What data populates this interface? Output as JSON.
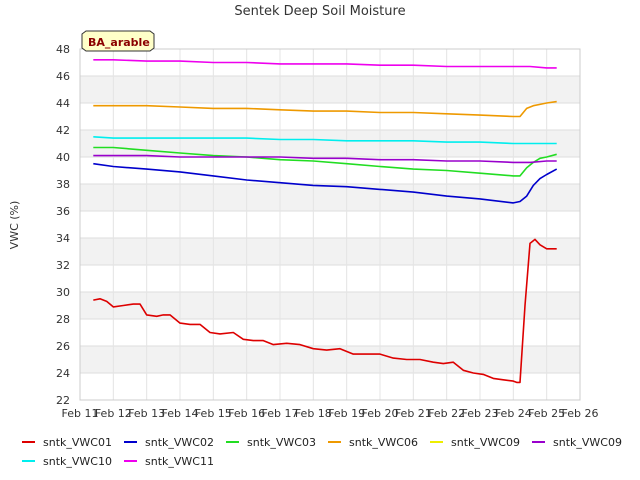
{
  "chart_data": {
    "type": "line",
    "title": "Sentek Deep Soil Moisture",
    "badge": "BA_arable",
    "xlabel": "",
    "ylabel": "VWC (%)",
    "x_ticks": [
      "Feb 11",
      "Feb 12",
      "Feb 13",
      "Feb 14",
      "Feb 15",
      "Feb 16",
      "Feb 17",
      "Feb 18",
      "Feb 19",
      "Feb 20",
      "Feb 21",
      "Feb 22",
      "Feb 23",
      "Feb 24",
      "Feb 25",
      "Feb 26"
    ],
    "xlim": [
      11,
      26
    ],
    "ylim": [
      22,
      48
    ],
    "y_ticks": [
      22,
      24,
      26,
      28,
      30,
      32,
      34,
      36,
      38,
      40,
      42,
      44,
      46,
      48
    ],
    "grid": true,
    "legend_position": "bottom",
    "series": [
      {
        "name": "sntk_VWC01",
        "color": "#dd0000",
        "x": [
          11.4,
          11.6,
          11.8,
          12.0,
          12.3,
          12.6,
          12.8,
          13.0,
          13.3,
          13.5,
          13.7,
          14.0,
          14.3,
          14.6,
          14.9,
          15.2,
          15.6,
          15.9,
          16.2,
          16.5,
          16.8,
          17.2,
          17.6,
          18.0,
          18.4,
          18.8,
          19.2,
          19.6,
          20.0,
          20.4,
          20.8,
          21.2,
          21.6,
          21.9,
          22.2,
          22.5,
          22.8,
          23.1,
          23.4,
          23.7,
          24.0,
          24.1,
          24.2,
          24.35,
          24.5,
          24.65,
          24.8,
          25.0,
          25.3
        ],
        "y": [
          29.4,
          29.5,
          29.3,
          28.9,
          29.0,
          29.1,
          29.1,
          28.3,
          28.2,
          28.3,
          28.3,
          27.7,
          27.6,
          27.6,
          27.0,
          26.9,
          27.0,
          26.5,
          26.4,
          26.4,
          26.1,
          26.2,
          26.1,
          25.8,
          25.7,
          25.8,
          25.4,
          25.4,
          25.4,
          25.1,
          25.0,
          25.0,
          24.8,
          24.7,
          24.8,
          24.2,
          24.0,
          23.9,
          23.6,
          23.5,
          23.4,
          23.3,
          23.3,
          29.0,
          33.6,
          33.9,
          33.5,
          33.2,
          33.2
        ]
      },
      {
        "name": "sntk_VWC02",
        "color": "#0000cc",
        "x": [
          11.4,
          12.0,
          13.0,
          14.0,
          15.0,
          16.0,
          17.0,
          18.0,
          19.0,
          20.0,
          21.0,
          22.0,
          23.0,
          24.0,
          24.2,
          24.4,
          24.6,
          24.8,
          25.0,
          25.3
        ],
        "y": [
          39.5,
          39.3,
          39.1,
          38.9,
          38.6,
          38.3,
          38.1,
          37.9,
          37.8,
          37.6,
          37.4,
          37.1,
          36.9,
          36.6,
          36.7,
          37.1,
          37.9,
          38.4,
          38.7,
          39.1
        ]
      },
      {
        "name": "sntk_VWC03",
        "color": "#22dd22",
        "x": [
          11.4,
          12.0,
          13.0,
          14.0,
          15.0,
          16.0,
          17.0,
          18.0,
          19.0,
          20.0,
          21.0,
          22.0,
          23.0,
          24.0,
          24.2,
          24.4,
          24.6,
          24.8,
          25.0,
          25.3
        ],
        "y": [
          40.7,
          40.7,
          40.5,
          40.3,
          40.1,
          40.0,
          39.8,
          39.7,
          39.5,
          39.3,
          39.1,
          39.0,
          38.8,
          38.6,
          38.6,
          39.2,
          39.6,
          39.9,
          40.0,
          40.2
        ]
      },
      {
        "name": "sntk_VWC06",
        "color": "#ee9900",
        "x": [
          11.4,
          12.0,
          13.0,
          14.0,
          15.0,
          16.0,
          17.0,
          18.0,
          19.0,
          20.0,
          21.0,
          22.0,
          23.0,
          24.0,
          24.2,
          24.4,
          24.6,
          24.8,
          25.0,
          25.3
        ],
        "y": [
          43.8,
          43.8,
          43.8,
          43.7,
          43.6,
          43.6,
          43.5,
          43.4,
          43.4,
          43.3,
          43.3,
          43.2,
          43.1,
          43.0,
          43.0,
          43.6,
          43.8,
          43.9,
          44.0,
          44.1
        ]
      },
      {
        "name": "sntk_VWC09",
        "color": "#eeee00",
        "x": [],
        "y": []
      },
      {
        "name": "sntk_VWC09",
        "color": "#9900cc",
        "x": [
          11.4,
          12.0,
          13.0,
          14.0,
          15.0,
          16.0,
          17.0,
          18.0,
          19.0,
          20.0,
          21.0,
          22.0,
          23.0,
          24.0,
          24.5,
          25.0,
          25.3
        ],
        "y": [
          40.1,
          40.1,
          40.1,
          40.0,
          40.0,
          40.0,
          40.0,
          39.9,
          39.9,
          39.8,
          39.8,
          39.7,
          39.7,
          39.6,
          39.6,
          39.7,
          39.7
        ]
      },
      {
        "name": "sntk_VWC10",
        "color": "#00eeee",
        "x": [
          11.4,
          12.0,
          13.0,
          14.0,
          15.0,
          16.0,
          17.0,
          18.0,
          19.0,
          20.0,
          21.0,
          22.0,
          23.0,
          24.0,
          24.5,
          25.0,
          25.3
        ],
        "y": [
          41.5,
          41.4,
          41.4,
          41.4,
          41.4,
          41.4,
          41.3,
          41.3,
          41.2,
          41.2,
          41.2,
          41.1,
          41.1,
          41.0,
          41.0,
          41.0,
          41.0
        ]
      },
      {
        "name": "sntk_VWC11",
        "color": "#ee00ee",
        "x": [
          11.4,
          12.0,
          13.0,
          14.0,
          15.0,
          16.0,
          17.0,
          18.0,
          19.0,
          20.0,
          21.0,
          22.0,
          23.0,
          24.0,
          24.5,
          25.0,
          25.3
        ],
        "y": [
          47.2,
          47.2,
          47.1,
          47.1,
          47.0,
          47.0,
          46.9,
          46.9,
          46.9,
          46.8,
          46.8,
          46.7,
          46.7,
          46.7,
          46.7,
          46.6,
          46.6
        ]
      }
    ]
  }
}
